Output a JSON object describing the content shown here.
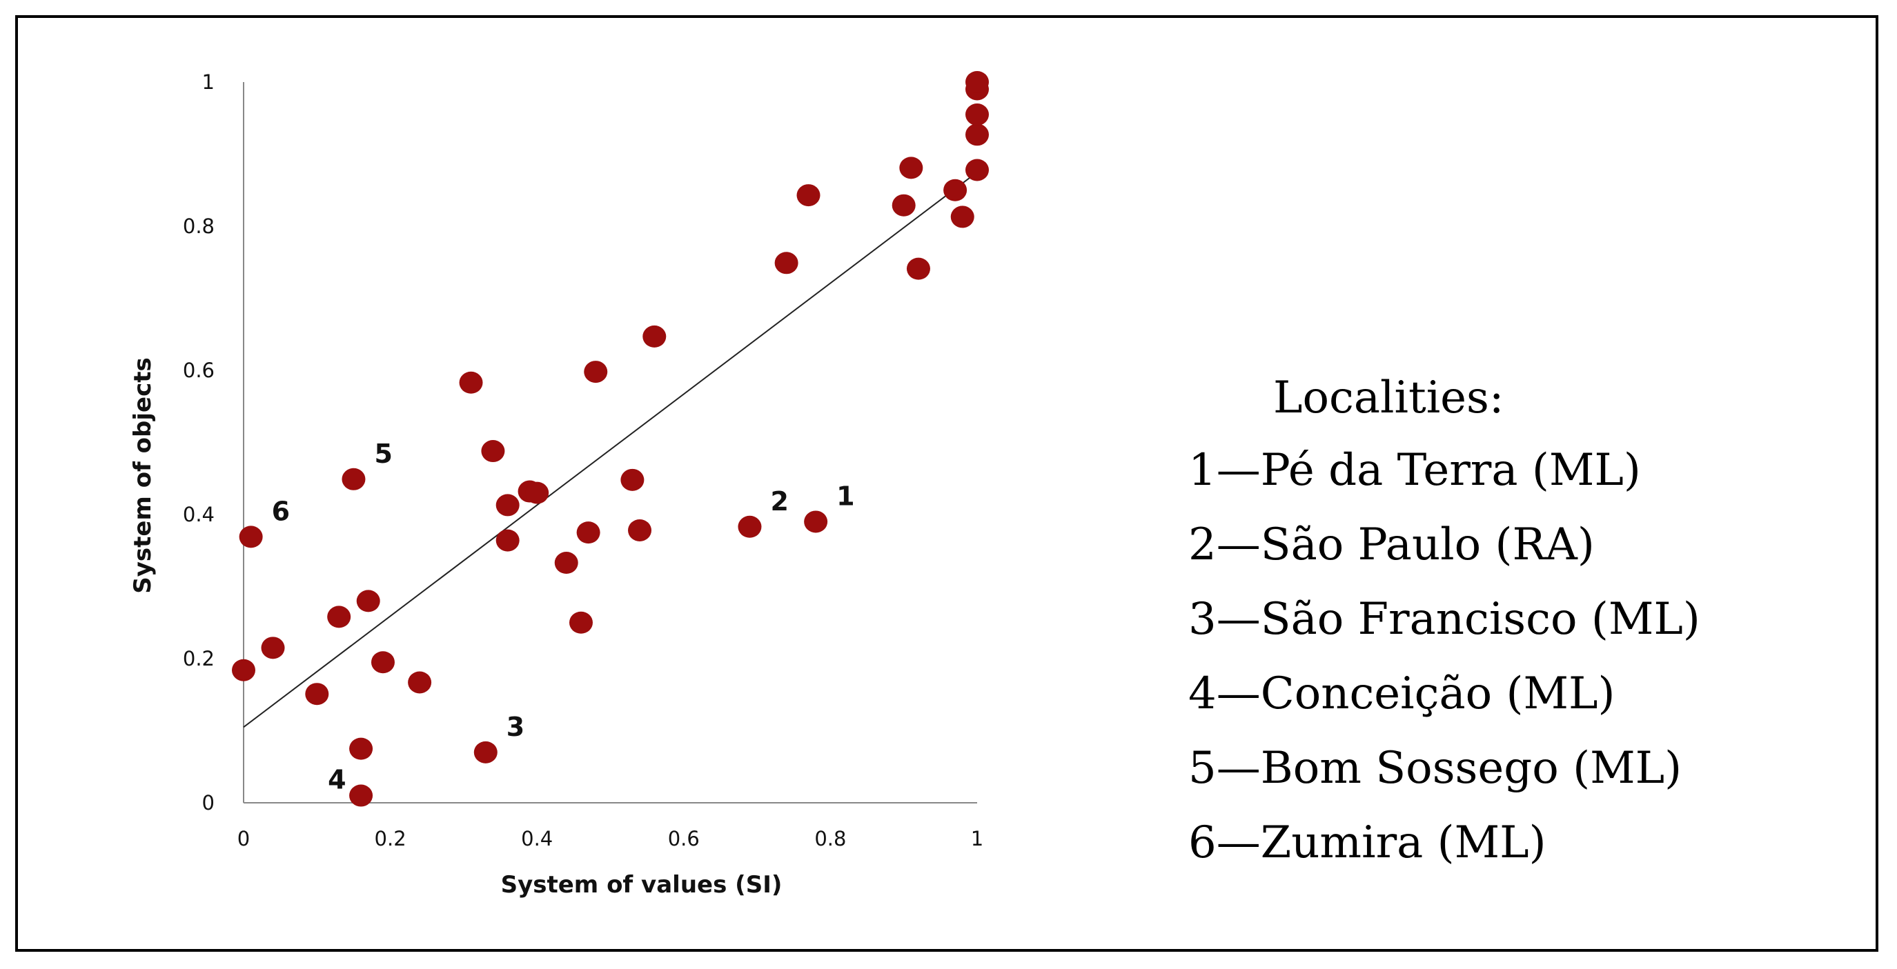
{
  "chart_data": {
    "type": "scatter",
    "xlabel": "System of values (SI)",
    "ylabel": "System of objects",
    "xlim": [
      0,
      1
    ],
    "ylim": [
      0,
      1
    ],
    "x_ticks": [
      "0",
      "0.2",
      "0.4",
      "0.6",
      "0.8",
      "1"
    ],
    "y_ticks": [
      "0",
      "0.2",
      "0.4",
      "0.6",
      "0.8",
      "1"
    ],
    "grid": false,
    "marker_color": "#9b0d0d",
    "trendline": {
      "x": [
        0,
        1
      ],
      "y": [
        0.105,
        0.875
      ],
      "color": "#222222"
    },
    "points": [
      {
        "x": 0.78,
        "y": 0.39,
        "label": "1"
      },
      {
        "x": 0.69,
        "y": 0.383,
        "label": "2"
      },
      {
        "x": 0.33,
        "y": 0.07,
        "label": "3"
      },
      {
        "x": 0.16,
        "y": 0.01,
        "label": "4"
      },
      {
        "x": 0.15,
        "y": 0.449,
        "label": "5"
      },
      {
        "x": 0.01,
        "y": 0.369,
        "label": "6"
      },
      {
        "x": 0.0,
        "y": 0.184
      },
      {
        "x": 0.04,
        "y": 0.215
      },
      {
        "x": 0.1,
        "y": 0.151
      },
      {
        "x": 0.13,
        "y": 0.258
      },
      {
        "x": 0.16,
        "y": 0.075
      },
      {
        "x": 0.17,
        "y": 0.28
      },
      {
        "x": 0.19,
        "y": 0.195
      },
      {
        "x": 0.24,
        "y": 0.167
      },
      {
        "x": 0.31,
        "y": 0.583
      },
      {
        "x": 0.34,
        "y": 0.488
      },
      {
        "x": 0.36,
        "y": 0.413
      },
      {
        "x": 0.36,
        "y": 0.364
      },
      {
        "x": 0.39,
        "y": 0.432
      },
      {
        "x": 0.4,
        "y": 0.43
      },
      {
        "x": 0.44,
        "y": 0.333
      },
      {
        "x": 0.46,
        "y": 0.25
      },
      {
        "x": 0.47,
        "y": 0.375
      },
      {
        "x": 0.48,
        "y": 0.598
      },
      {
        "x": 0.53,
        "y": 0.448
      },
      {
        "x": 0.54,
        "y": 0.378
      },
      {
        "x": 0.56,
        "y": 0.647
      },
      {
        "x": 0.74,
        "y": 0.749
      },
      {
        "x": 0.77,
        "y": 0.843
      },
      {
        "x": 0.9,
        "y": 0.829
      },
      {
        "x": 0.91,
        "y": 0.881
      },
      {
        "x": 0.92,
        "y": 0.741
      },
      {
        "x": 0.97,
        "y": 0.85
      },
      {
        "x": 0.98,
        "y": 0.813
      },
      {
        "x": 1.0,
        "y": 0.878
      },
      {
        "x": 1.0,
        "y": 0.927
      },
      {
        "x": 1.0,
        "y": 0.955
      },
      {
        "x": 1.0,
        "y": 0.99
      },
      {
        "x": 1.0,
        "y": 1.0
      }
    ]
  },
  "legend": {
    "title": "Localities:",
    "items": [
      "1—Pé da Terra (ML)",
      "2—São Paulo (RA)",
      "3—São Francisco (ML)",
      "4—Conceição (ML)",
      "5—Bom Sossego (ML)",
      "6—Zumira (ML)"
    ]
  }
}
